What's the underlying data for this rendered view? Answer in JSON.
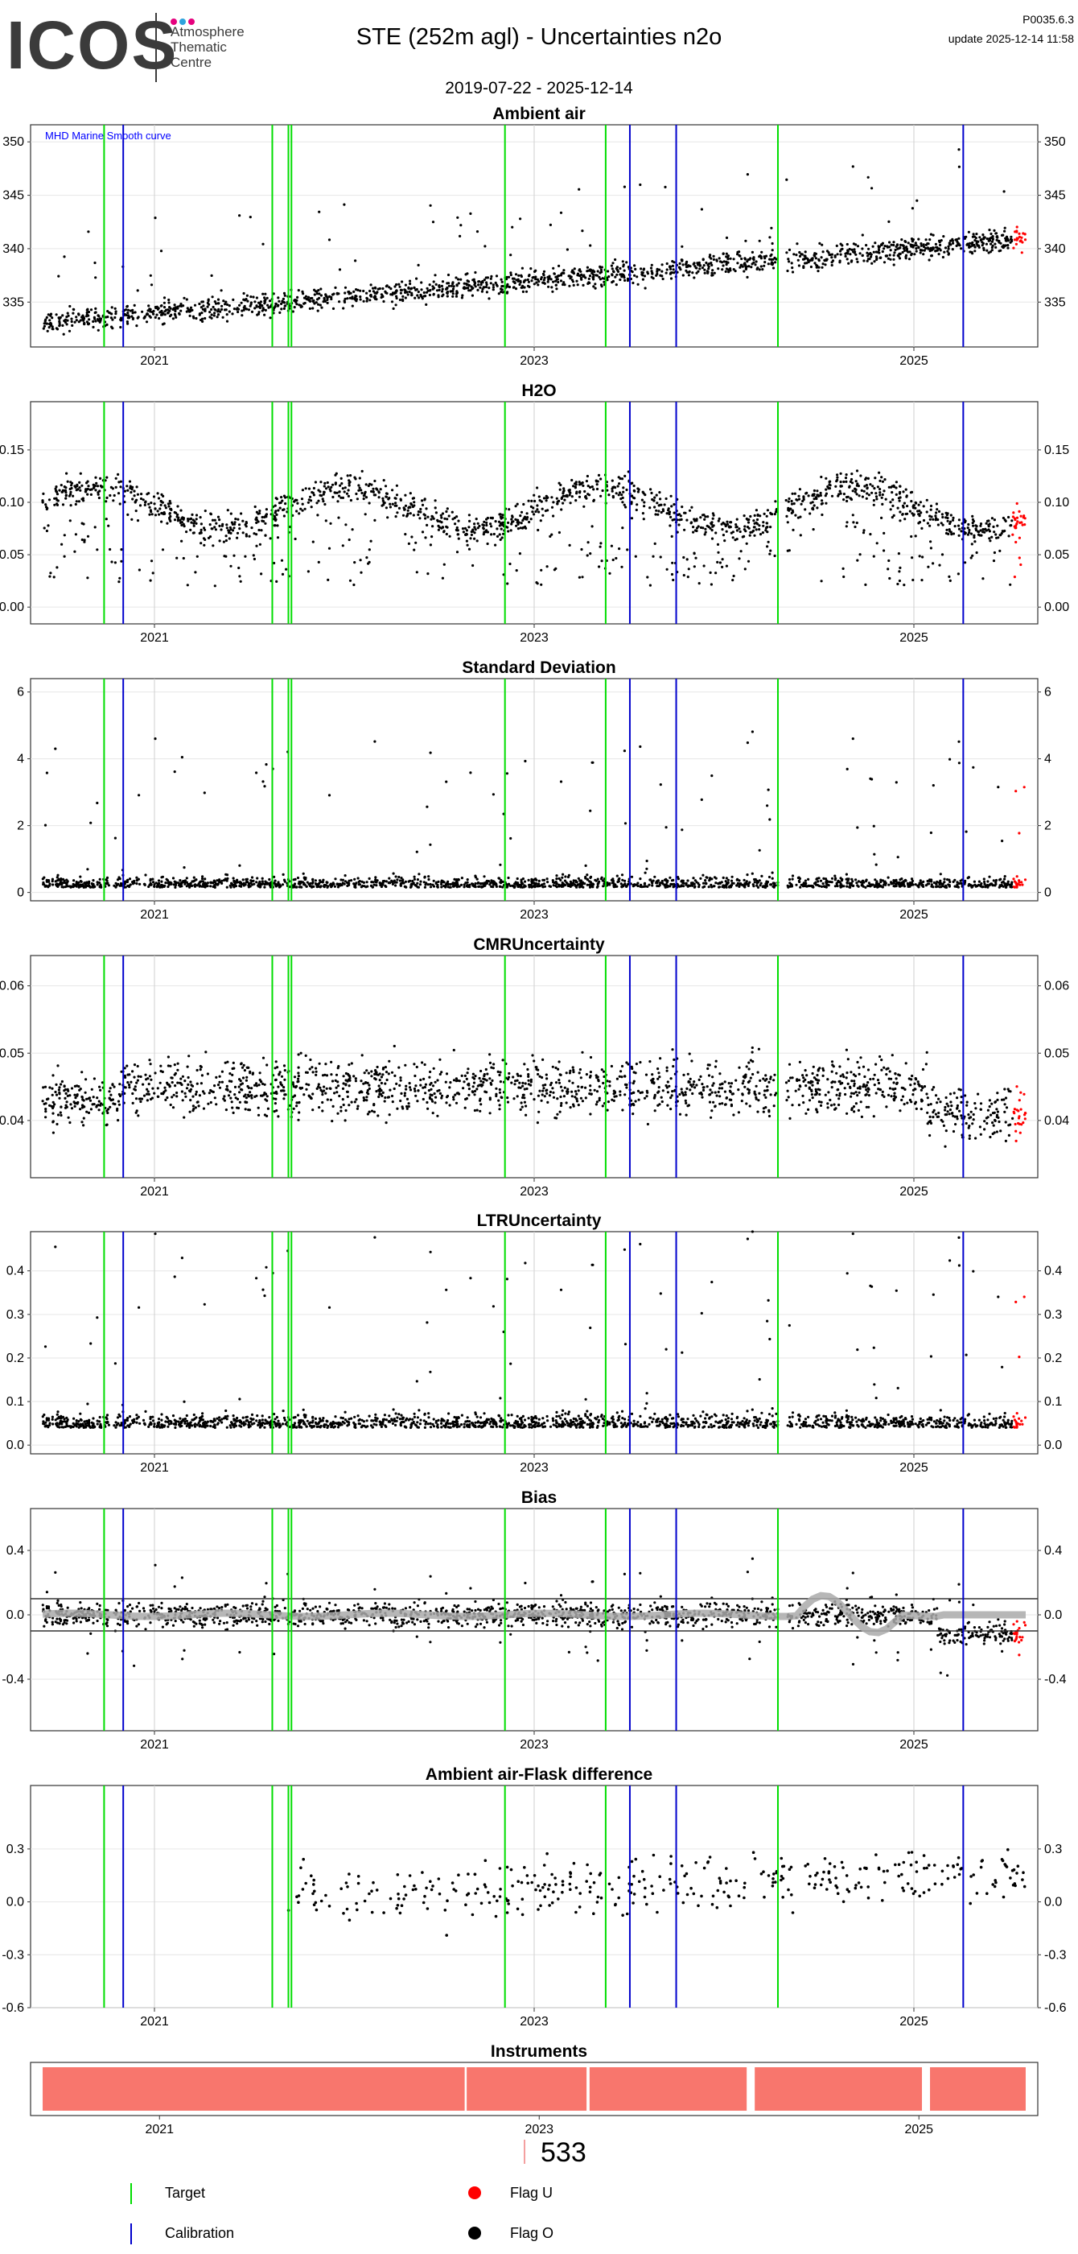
{
  "header": {
    "logo_text": "ICOS",
    "logo_subtitle_1": "Atmosphere",
    "logo_subtitle_2": "Thematic",
    "logo_subtitle_3": "Centre",
    "logo_dot_colors": [
      "#e5007d",
      "#2ea3dd",
      "#e5007d"
    ],
    "title": "STE  (252m agl) - Uncertainties n2o",
    "date_range": "2019-07-22 - 2025-12-14",
    "version": "P0035.6.3",
    "update": "update  2025-12-14 11:58"
  },
  "colors": {
    "target": "#00dd00",
    "calibration": "#0000cc",
    "flag_u": "#ff0000",
    "flag_o": "#000000",
    "instrument": "#f8766d",
    "bias_smooth": "#aaaaaa"
  },
  "chart_data": [
    {
      "type": "scatter",
      "title": "Ambient air",
      "annotation": "MHD Marine Smooth curve",
      "annotation_color": "#0000ff",
      "ylim": [
        330.8,
        351.6
      ],
      "yticks": [
        335,
        340,
        345,
        350
      ],
      "xticks": [
        "2021",
        "2023",
        "2025"
      ],
      "series_shape": "trend",
      "base": 333.0,
      "end": 341.0,
      "spread": 0.9,
      "spikes": 3.5
    },
    {
      "type": "scatter",
      "title": "H2O",
      "ylim": [
        -0.016,
        0.196
      ],
      "yticks": [
        0.0,
        0.05,
        0.1,
        0.15
      ],
      "ytick_labels": [
        "0.00",
        "0.05",
        "0.10",
        "0.15"
      ],
      "xticks": [
        "2021",
        "2023",
        "2025"
      ],
      "series_shape": "h2o",
      "base": 0.095,
      "spread": 0.012
    },
    {
      "type": "scatter",
      "title": "Standard Deviation",
      "ylim": [
        -0.25,
        6.4
      ],
      "yticks": [
        0,
        2,
        4,
        6
      ],
      "xticks": [
        "2021",
        "2023",
        "2025"
      ],
      "series_shape": "low",
      "base": 0.15,
      "spread": 0.25,
      "spikes": 1.5
    },
    {
      "type": "scatter",
      "title": "CMRUncertainty",
      "ylim": [
        0.0315,
        0.0645
      ],
      "yticks": [
        0.04,
        0.05,
        0.06
      ],
      "ytick_labels": [
        "0.04",
        "0.05",
        "0.06"
      ],
      "xticks": [
        "2021",
        "2023",
        "2025"
      ],
      "series_shape": "cmr",
      "base": 0.045,
      "spread": 0.0035
    },
    {
      "type": "scatter",
      "title": "LTRUncertainty",
      "ylim": [
        -0.02,
        0.49
      ],
      "yticks": [
        0.0,
        0.1,
        0.2,
        0.3,
        0.4
      ],
      "ytick_labels": [
        "0.0",
        "0.1",
        "0.2",
        "0.3",
        "0.4"
      ],
      "xticks": [
        "2021",
        "2023",
        "2025"
      ],
      "series_shape": "low",
      "base": 0.04,
      "spread": 0.025,
      "spikes": 0.15
    },
    {
      "type": "scatter",
      "title": "Bias",
      "ylim": [
        -0.72,
        0.66
      ],
      "yticks": [
        -0.4,
        0.0,
        0.4
      ],
      "ytick_labels": [
        "-0.4",
        "0.0",
        "0.4"
      ],
      "xticks": [
        "2021",
        "2023",
        "2025"
      ],
      "series_shape": "bias",
      "base": 0.0,
      "spread": 0.06,
      "spikes": 0.2,
      "hlines": [
        0.1,
        -0.1
      ]
    },
    {
      "type": "scatter",
      "title": "Ambient air-Flask difference",
      "ylim": [
        -0.6,
        0.66
      ],
      "yticks": [
        -0.6,
        -0.3,
        0.0,
        0.3
      ],
      "ytick_labels": [
        "-0.6",
        "-0.3",
        "0.0",
        "0.3"
      ],
      "xticks": [
        "2021",
        "2023",
        "2025"
      ],
      "series_shape": "flask",
      "base": 0.07,
      "spread": 0.12
    },
    {
      "type": "bar",
      "title": "Instruments",
      "xticks": [
        "2021",
        "2023",
        "2025"
      ],
      "series_shape": "instruments"
    }
  ],
  "legend": {
    "count": "533",
    "target": "Target",
    "calibration": "Calibration",
    "flag_u": "Flag U",
    "flag_o": "Flag O"
  }
}
